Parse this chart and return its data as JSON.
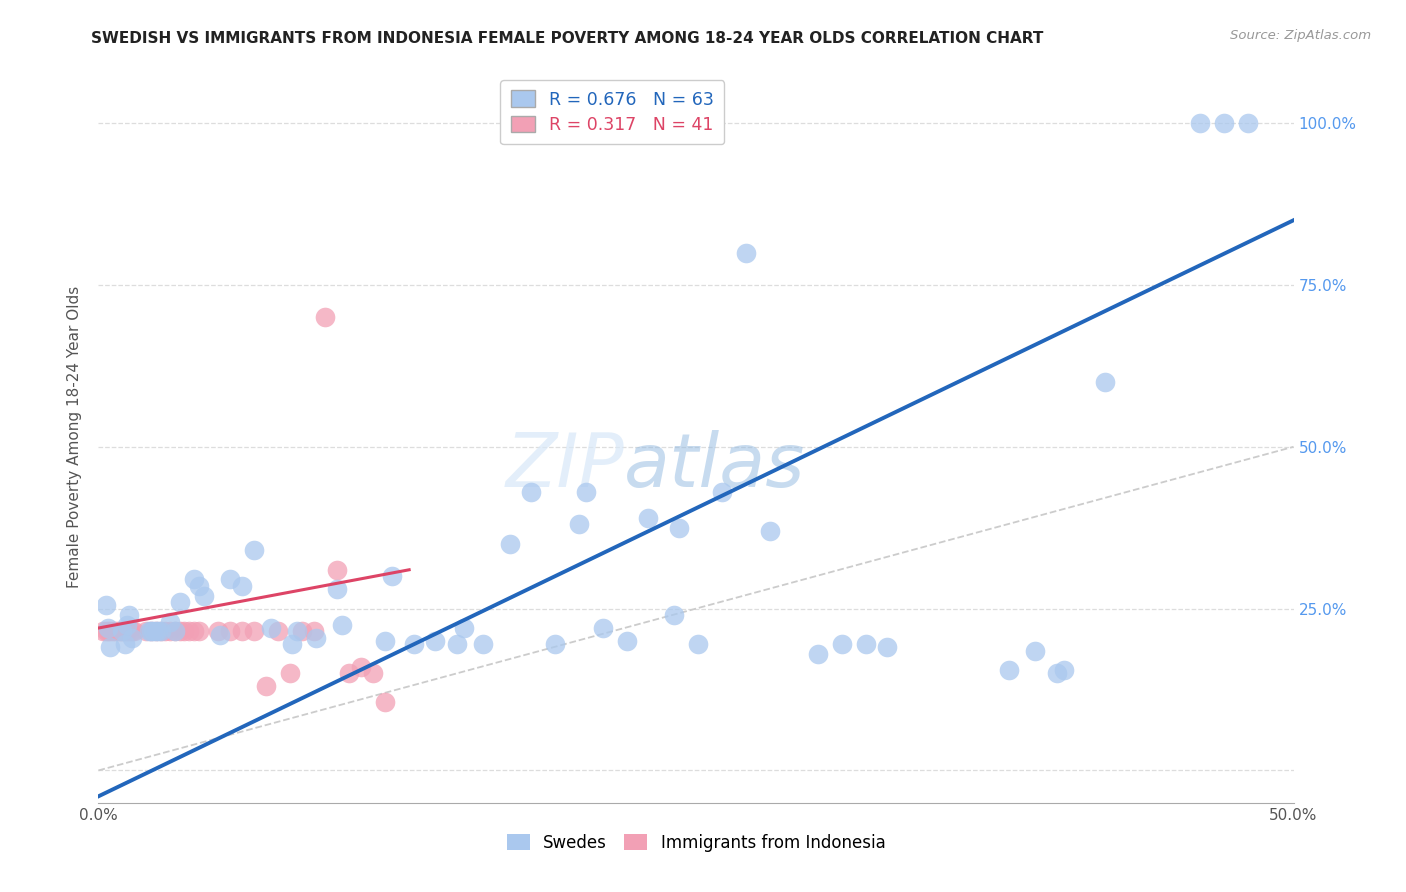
{
  "title": "SWEDISH VS IMMIGRANTS FROM INDONESIA FEMALE POVERTY AMONG 18-24 YEAR OLDS CORRELATION CHART",
  "source": "Source: ZipAtlas.com",
  "ylabel": "Female Poverty Among 18-24 Year Olds",
  "watermark": "ZIPatlas",
  "xlim": [
    0.0,
    0.5
  ],
  "ylim": [
    -0.05,
    1.08
  ],
  "xticks": [
    0.0,
    0.05,
    0.1,
    0.15,
    0.2,
    0.25,
    0.3,
    0.35,
    0.4,
    0.45,
    0.5
  ],
  "ytick_positions": [
    0.0,
    0.25,
    0.5,
    0.75,
    1.0
  ],
  "ytick_labels_right": [
    "",
    "25.0%",
    "50.0%",
    "75.0%",
    "100.0%"
  ],
  "xtick_labels": [
    "0.0%",
    "",
    "",
    "",
    "",
    "",
    "",
    "",
    "",
    "",
    "50.0%"
  ],
  "swedes_color": "#aac8ee",
  "indonesia_color": "#f2a0b5",
  "swedes_line_color": "#2266bb",
  "indonesia_line_color": "#dd4466",
  "diag_line_color": "#cccccc",
  "background_color": "#ffffff",
  "grid_color": "#dddddd",
  "legend_label_swedes": "R = 0.676   N = 63",
  "legend_label_indonesia": "R = 0.317   N = 41",
  "bottom_legend_swedes": "Swedes",
  "bottom_legend_indonesia": "Immigrants from Indonesia",
  "swedes_x": [
    0.003,
    0.004,
    0.005,
    0.01,
    0.011,
    0.012,
    0.013,
    0.014,
    0.021,
    0.022,
    0.023,
    0.024,
    0.025,
    0.026,
    0.03,
    0.032,
    0.034,
    0.04,
    0.042,
    0.044,
    0.051,
    0.055,
    0.06,
    0.065,
    0.072,
    0.081,
    0.083,
    0.091,
    0.1,
    0.102,
    0.12,
    0.123,
    0.132,
    0.141,
    0.15,
    0.153,
    0.161,
    0.172,
    0.181,
    0.191,
    0.201,
    0.204,
    0.211,
    0.221,
    0.23,
    0.241,
    0.243,
    0.251,
    0.261,
    0.271,
    0.281,
    0.301,
    0.311,
    0.321,
    0.33,
    0.381,
    0.392,
    0.401,
    0.404,
    0.421,
    0.461,
    0.471,
    0.481
  ],
  "swedes_y": [
    0.255,
    0.22,
    0.19,
    0.215,
    0.195,
    0.225,
    0.24,
    0.205,
    0.215,
    0.215,
    0.215,
    0.215,
    0.215,
    0.215,
    0.23,
    0.215,
    0.26,
    0.295,
    0.285,
    0.27,
    0.21,
    0.295,
    0.285,
    0.34,
    0.22,
    0.195,
    0.215,
    0.205,
    0.28,
    0.225,
    0.2,
    0.3,
    0.195,
    0.2,
    0.195,
    0.22,
    0.195,
    0.35,
    0.43,
    0.195,
    0.38,
    0.43,
    0.22,
    0.2,
    0.39,
    0.24,
    0.375,
    0.195,
    0.43,
    0.8,
    0.37,
    0.18,
    0.195,
    0.195,
    0.19,
    0.155,
    0.185,
    0.15,
    0.155,
    0.6,
    1.0,
    1.0,
    1.0
  ],
  "indonesia_x": [
    0.002,
    0.003,
    0.004,
    0.005,
    0.006,
    0.007,
    0.008,
    0.009,
    0.01,
    0.011,
    0.012,
    0.013,
    0.014,
    0.015,
    0.02,
    0.022,
    0.024,
    0.026,
    0.028,
    0.03,
    0.032,
    0.034,
    0.036,
    0.038,
    0.04,
    0.042,
    0.05,
    0.055,
    0.06,
    0.065,
    0.07,
    0.075,
    0.08,
    0.085,
    0.09,
    0.095,
    0.1,
    0.105,
    0.11,
    0.115,
    0.12
  ],
  "indonesia_y": [
    0.215,
    0.215,
    0.215,
    0.215,
    0.215,
    0.215,
    0.215,
    0.215,
    0.215,
    0.215,
    0.215,
    0.215,
    0.215,
    0.215,
    0.215,
    0.215,
    0.215,
    0.215,
    0.215,
    0.215,
    0.215,
    0.215,
    0.215,
    0.215,
    0.215,
    0.215,
    0.215,
    0.215,
    0.215,
    0.215,
    0.13,
    0.215,
    0.15,
    0.215,
    0.215,
    0.7,
    0.31,
    0.15,
    0.16,
    0.15,
    0.105
  ],
  "swedes_line_x0": 0.0,
  "swedes_line_y0": -0.04,
  "swedes_line_x1": 0.5,
  "swedes_line_y1": 0.85,
  "indonesia_line_x0": 0.0,
  "indonesia_line_y0": 0.22,
  "indonesia_line_x1": 0.13,
  "indonesia_line_y1": 0.31,
  "diag_line_x0": 0.0,
  "diag_line_y0": 0.0,
  "diag_line_x1": 0.5,
  "diag_line_y1": 0.5
}
